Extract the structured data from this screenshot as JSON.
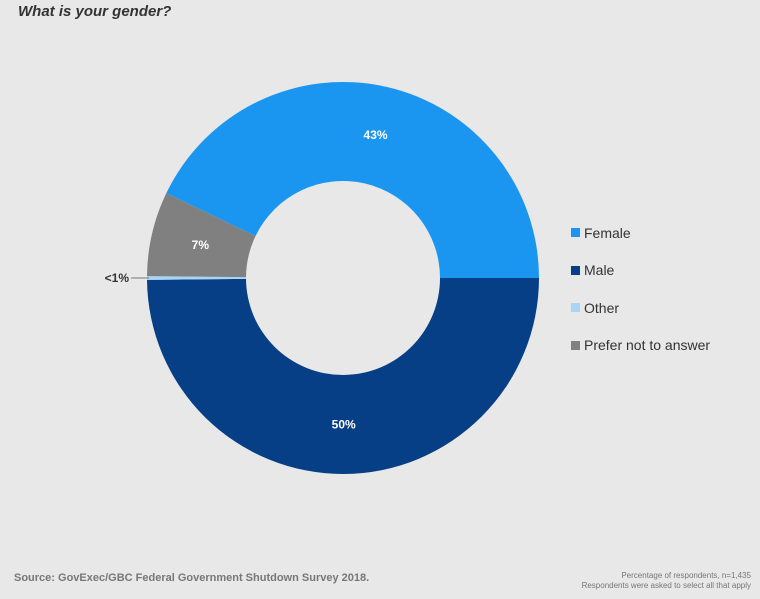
{
  "chart_data": {
    "type": "pie",
    "title": "What is your gender?",
    "categories": [
      "Female",
      "Male",
      "Other",
      "Prefer not to answer"
    ],
    "values": [
      43,
      50,
      0.3,
      7
    ],
    "labels": [
      "43%",
      "50%",
      "<1%",
      "7%"
    ],
    "colors": [
      "#1b96f0",
      "#073f86",
      "#a9d5f5",
      "#808080"
    ],
    "donut": true,
    "legend_position": "right"
  },
  "footer": {
    "source": "Source: GovExec/GBC Federal Government Shutdown Survey 2018.",
    "note1": "Percentage of respondents, n=1,435",
    "note2": "Respondents were asked to select all that apply"
  }
}
